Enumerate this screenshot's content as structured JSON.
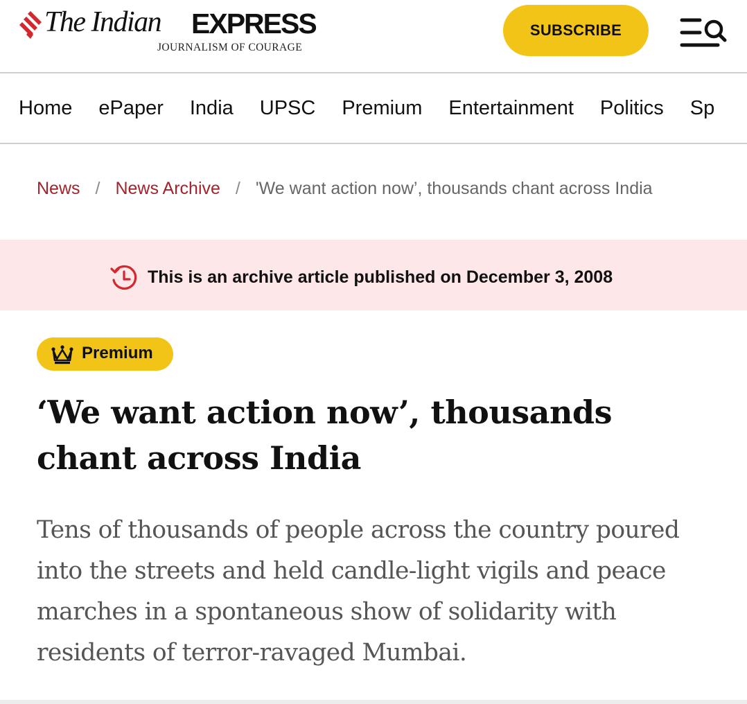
{
  "header": {
    "logo": {
      "the_indian": "The Indian",
      "express": "EXPRESS",
      "tagline": "JOURNALISM OF COURAGE"
    },
    "subscribe_label": "SUBSCRIBE",
    "menu_icon": "menu-search-icon"
  },
  "nav": {
    "items": [
      {
        "label": "Home"
      },
      {
        "label": "ePaper"
      },
      {
        "label": "India"
      },
      {
        "label": "UPSC"
      },
      {
        "label": "Premium"
      },
      {
        "label": "Entertainment"
      },
      {
        "label": "Politics"
      },
      {
        "label": "Sp"
      }
    ]
  },
  "breadcrumb": {
    "items": [
      {
        "label": "News"
      },
      {
        "label": "News Archive"
      },
      {
        "label": "'We want action now’, thousands chant across India"
      }
    ],
    "separator": "/"
  },
  "archive_banner": {
    "icon": "history-clock-icon",
    "text": "This is an archive article published on December 3, 2008"
  },
  "premium_badge": {
    "icon": "crown-icon",
    "label": "Premium"
  },
  "article": {
    "headline": "‘We want action now’, thousands chant across India",
    "summary": "Tens of thousands of people across the country poured into the streets and held candle-light vigils and peace marches in a spontaneous show of solidarity with residents of terror-ravaged Mumbai."
  },
  "colors": {
    "accent_yellow": "#f3c418",
    "link_red": "#a3242b",
    "banner_pink": "#fde7e8",
    "logo_red": "#d4272e"
  }
}
